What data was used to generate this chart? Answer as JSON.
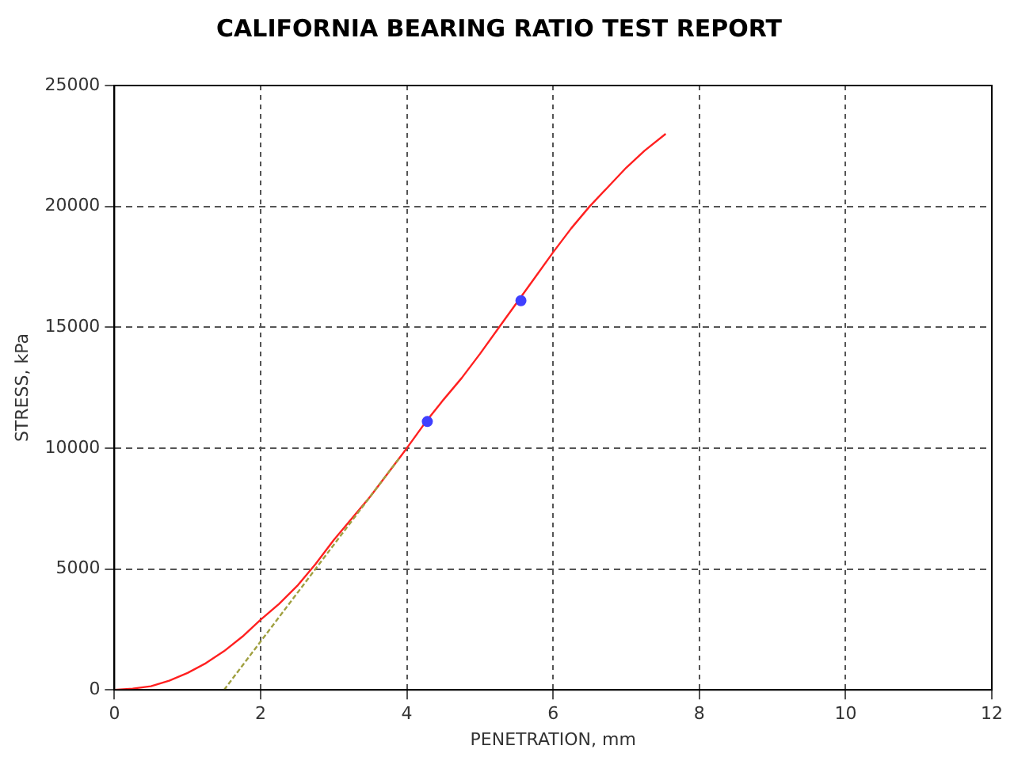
{
  "chart_data": {
    "type": "line",
    "title": "CALIFORNIA BEARING RATIO TEST REPORT",
    "xlabel": "PENETRATION, mm",
    "ylabel": "STRESS, kPa",
    "xlim": [
      0,
      12
    ],
    "xticks": [
      0,
      2,
      4,
      6,
      8,
      10,
      12
    ],
    "ylim": [
      0,
      25000
    ],
    "yticks": [
      0,
      5000,
      10000,
      15000,
      20000,
      25000
    ],
    "grid": true,
    "legend": false,
    "series": [
      {
        "color": "#ff2020",
        "marker": "none",
        "line_style": "solid",
        "x": [
          0,
          0.25,
          0.5,
          0.75,
          1,
          1.25,
          1.5,
          1.75,
          2,
          2.25,
          2.5,
          2.75,
          3,
          3.25,
          3.5,
          3.75,
          4,
          4.25,
          4.5,
          4.75,
          5,
          5.25,
          5.5,
          5.75,
          6,
          6.25,
          6.5,
          6.75,
          7,
          7.25,
          7.54
        ],
        "values": [
          0,
          50,
          150,
          380,
          700,
          1100,
          1600,
          2200,
          2900,
          3550,
          4300,
          5200,
          6200,
          7100,
          8000,
          9000,
          10000,
          11050,
          12000,
          12900,
          13900,
          14950,
          16000,
          17050,
          18100,
          19100,
          20000,
          20800,
          21600,
          22300,
          23000
        ]
      },
      {
        "color": "#a0a040",
        "marker": "none",
        "line_style": "dashed",
        "x": [
          1.5,
          3.9
        ],
        "values": [
          0,
          9600
        ]
      },
      {
        "type": "scatter",
        "color": "#4040ff",
        "marker": "circle",
        "x": [
          4.28,
          5.56
        ],
        "values": [
          11100,
          16100
        ]
      }
    ]
  }
}
